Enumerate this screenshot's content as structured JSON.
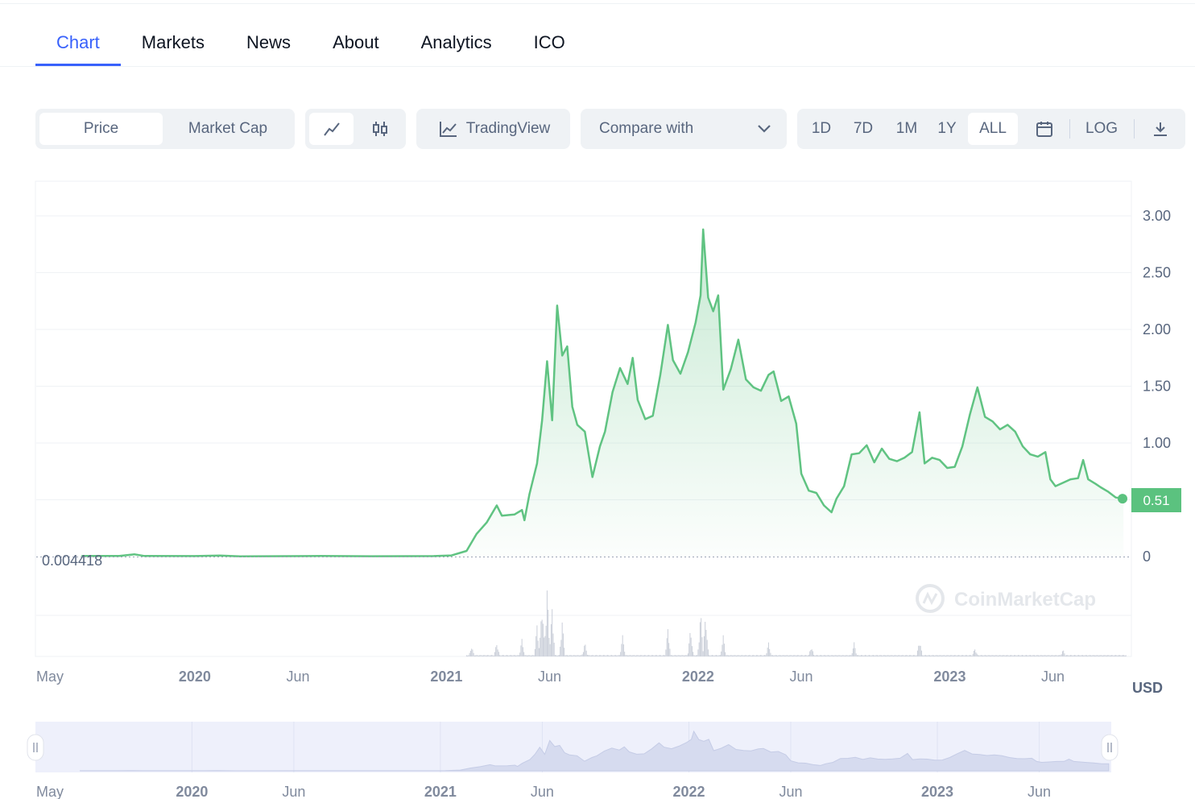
{
  "tabs": [
    "Chart",
    "Markets",
    "News",
    "About",
    "Analytics",
    "ICO"
  ],
  "active_tab": "Chart",
  "toolbar": {
    "price_label": "Price",
    "marketcap_label": "Market Cap",
    "line_icon": "line-chart-icon",
    "candle_icon": "candlestick-icon",
    "tradingview_label": "TradingView",
    "compare_label": "Compare with",
    "ranges": [
      "1D",
      "7D",
      "1M",
      "1Y",
      "ALL"
    ],
    "selected_range": "ALL",
    "log_label": "LOG",
    "calendar_icon": "calendar-icon",
    "download_icon": "download-icon"
  },
  "colors": {
    "accent": "#3861fb",
    "line": "#60c382",
    "badge": "#5bc27f"
  },
  "watermark": "CoinMarketCap",
  "currency": "USD",
  "chart_data": {
    "type": "area",
    "y_ticks": [
      "3.00",
      "2.50",
      "2.00",
      "1.50",
      "1.00",
      "0.51",
      "0"
    ],
    "y_range": [
      0,
      3.3
    ],
    "start_label": "0.004418",
    "current_label": "0.51",
    "current_value": 0.51,
    "x_labels": [
      "May",
      "2020",
      "Jun",
      "2021",
      "Jun",
      "2022",
      "Jun",
      "2023",
      "Jun"
    ],
    "x_bold": [
      false,
      true,
      false,
      true,
      false,
      true,
      false,
      true,
      false
    ],
    "x_dates": [
      2019.37,
      2020.0,
      2020.41,
      2021.0,
      2021.41,
      2022.0,
      2022.41,
      2023.0,
      2023.41
    ],
    "x_range": [
      2019.37,
      2023.7
    ],
    "series": [
      {
        "points": [
          [
            2019.55,
            0.005
          ],
          [
            2019.7,
            0.006
          ],
          [
            2019.76,
            0.02
          ],
          [
            2019.8,
            0.005
          ],
          [
            2020.0,
            0.004
          ],
          [
            2020.1,
            0.009
          ],
          [
            2020.18,
            0.002
          ],
          [
            2020.5,
            0.005
          ],
          [
            2020.7,
            0.003
          ],
          [
            2020.95,
            0.004
          ],
          [
            2021.02,
            0.01
          ],
          [
            2021.08,
            0.05
          ],
          [
            2021.12,
            0.2
          ],
          [
            2021.16,
            0.3
          ],
          [
            2021.2,
            0.45
          ],
          [
            2021.22,
            0.36
          ],
          [
            2021.27,
            0.37
          ],
          [
            2021.3,
            0.41
          ],
          [
            2021.31,
            0.32
          ],
          [
            2021.33,
            0.55
          ],
          [
            2021.36,
            0.82
          ],
          [
            2021.38,
            1.2
          ],
          [
            2021.4,
            1.72
          ],
          [
            2021.42,
            1.2
          ],
          [
            2021.44,
            2.21
          ],
          [
            2021.46,
            1.77
          ],
          [
            2021.48,
            1.85
          ],
          [
            2021.5,
            1.32
          ],
          [
            2021.52,
            1.16
          ],
          [
            2021.55,
            1.1
          ],
          [
            2021.58,
            0.7
          ],
          [
            2021.61,
            0.97
          ],
          [
            2021.63,
            1.1
          ],
          [
            2021.66,
            1.45
          ],
          [
            2021.69,
            1.66
          ],
          [
            2021.72,
            1.52
          ],
          [
            2021.74,
            1.75
          ],
          [
            2021.76,
            1.38
          ],
          [
            2021.79,
            1.21
          ],
          [
            2021.82,
            1.24
          ],
          [
            2021.85,
            1.6
          ],
          [
            2021.88,
            2.04
          ],
          [
            2021.9,
            1.73
          ],
          [
            2021.93,
            1.61
          ],
          [
            2021.96,
            1.8
          ],
          [
            2021.99,
            2.06
          ],
          [
            2022.01,
            2.3
          ],
          [
            2022.02,
            2.88
          ],
          [
            2022.04,
            2.28
          ],
          [
            2022.06,
            2.16
          ],
          [
            2022.08,
            2.3
          ],
          [
            2022.1,
            1.47
          ],
          [
            2022.13,
            1.65
          ],
          [
            2022.16,
            1.91
          ],
          [
            2022.19,
            1.56
          ],
          [
            2022.22,
            1.49
          ],
          [
            2022.25,
            1.46
          ],
          [
            2022.28,
            1.6
          ],
          [
            2022.3,
            1.63
          ],
          [
            2022.33,
            1.37
          ],
          [
            2022.36,
            1.41
          ],
          [
            2022.39,
            1.17
          ],
          [
            2022.41,
            0.73
          ],
          [
            2022.44,
            0.58
          ],
          [
            2022.47,
            0.56
          ],
          [
            2022.5,
            0.45
          ],
          [
            2022.53,
            0.39
          ],
          [
            2022.55,
            0.51
          ],
          [
            2022.58,
            0.62
          ],
          [
            2022.61,
            0.9
          ],
          [
            2022.64,
            0.91
          ],
          [
            2022.67,
            0.98
          ],
          [
            2022.7,
            0.83
          ],
          [
            2022.73,
            0.95
          ],
          [
            2022.76,
            0.86
          ],
          [
            2022.79,
            0.84
          ],
          [
            2022.82,
            0.87
          ],
          [
            2022.85,
            0.92
          ],
          [
            2022.88,
            1.27
          ],
          [
            2022.9,
            0.82
          ],
          [
            2022.93,
            0.87
          ],
          [
            2022.96,
            0.85
          ],
          [
            2022.99,
            0.78
          ],
          [
            2023.02,
            0.79
          ],
          [
            2023.05,
            0.97
          ],
          [
            2023.08,
            1.25
          ],
          [
            2023.11,
            1.49
          ],
          [
            2023.14,
            1.23
          ],
          [
            2023.17,
            1.19
          ],
          [
            2023.2,
            1.12
          ],
          [
            2023.23,
            1.16
          ],
          [
            2023.26,
            1.1
          ],
          [
            2023.29,
            0.97
          ],
          [
            2023.32,
            0.9
          ],
          [
            2023.35,
            0.88
          ],
          [
            2023.38,
            0.92
          ],
          [
            2023.4,
            0.68
          ],
          [
            2023.42,
            0.62
          ],
          [
            2023.45,
            0.65
          ],
          [
            2023.48,
            0.68
          ],
          [
            2023.51,
            0.69
          ],
          [
            2023.53,
            0.85
          ],
          [
            2023.55,
            0.68
          ],
          [
            2023.58,
            0.64
          ],
          [
            2023.6,
            0.61
          ],
          [
            2023.63,
            0.57
          ],
          [
            2023.66,
            0.52
          ],
          [
            2023.69,
            0.51
          ]
        ]
      }
    ],
    "volume_peaks": [
      [
        2021.1,
        0.15
      ],
      [
        2021.2,
        0.2
      ],
      [
        2021.3,
        0.25
      ],
      [
        2021.36,
        0.45
      ],
      [
        2021.38,
        0.8
      ],
      [
        2021.4,
        1.0
      ],
      [
        2021.42,
        0.7
      ],
      [
        2021.46,
        0.5
      ],
      [
        2021.55,
        0.2
      ],
      [
        2021.7,
        0.3
      ],
      [
        2021.88,
        0.4
      ],
      [
        2021.97,
        0.4
      ],
      [
        2022.01,
        0.65
      ],
      [
        2022.03,
        0.6
      ],
      [
        2022.1,
        0.3
      ],
      [
        2022.28,
        0.2
      ],
      [
        2022.45,
        0.15
      ],
      [
        2022.62,
        0.2
      ],
      [
        2022.88,
        0.25
      ],
      [
        2023.1,
        0.12
      ],
      [
        2023.45,
        0.1
      ]
    ]
  },
  "navigator": {
    "x_labels": [
      "May",
      "2020",
      "Jun",
      "2021",
      "Jun",
      "2022",
      "Jun",
      "2023",
      "Jun"
    ],
    "x_bold": [
      false,
      true,
      false,
      true,
      false,
      true,
      false,
      true,
      false
    ]
  }
}
